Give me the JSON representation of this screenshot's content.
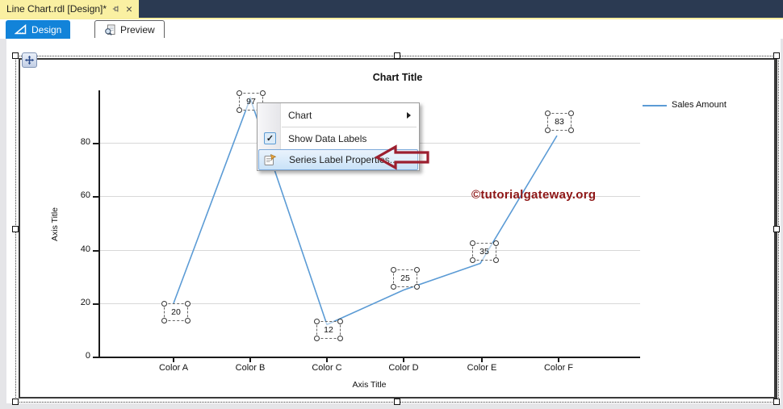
{
  "doc_tab": {
    "title": "Line Chart.rdl [Design]*"
  },
  "view_tabs": {
    "design": "Design",
    "preview": "Preview"
  },
  "context_menu": {
    "chart": "Chart",
    "show_data_labels": "Show Data Labels",
    "show_data_labels_checked": true,
    "series_label_properties": "Series Label Properties..."
  },
  "watermark": "©tutorialgateway.org",
  "chart_data": {
    "type": "line",
    "title": "Chart Title",
    "x_axis_title": "Axis Title",
    "y_axis_title": "Axis Title",
    "categories": [
      "Color A",
      "Color B",
      "Color C",
      "Color D",
      "Color E",
      "Color F"
    ],
    "series": [
      {
        "name": "Sales Amount",
        "color": "#5B9BD5",
        "values": [
          20,
          97,
          12,
          25,
          35,
          83
        ]
      }
    ],
    "yticks": [
      0,
      20,
      40,
      60,
      80
    ],
    "ylim": [
      0,
      100
    ],
    "grid": true,
    "legend_position": "right-top",
    "data_labels_shown": true
  },
  "colors": {
    "titlebar_navy": "#2B3A52",
    "doc_tab_yellow": "#FAF0A2",
    "design_tab_blue": "#1283D9",
    "series_line": "#5B9BD5",
    "watermark_red": "#8E1616",
    "annotation_arrow_red": "#9C1F2F",
    "menu_highlight": "#C9E2F8"
  }
}
